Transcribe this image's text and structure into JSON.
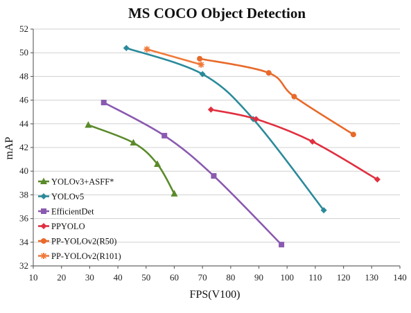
{
  "chart_data": {
    "type": "line",
    "title": "MS COCO Object Detection",
    "xlabel": "FPS(V100)",
    "ylabel": "mAP",
    "xlim": [
      10,
      140
    ],
    "ylim": [
      32,
      52
    ],
    "x_ticks": [
      10,
      20,
      30,
      40,
      50,
      60,
      70,
      80,
      90,
      100,
      110,
      120,
      130,
      140
    ],
    "y_ticks": [
      32,
      34,
      36,
      38,
      40,
      42,
      44,
      46,
      48,
      50,
      52
    ],
    "grid": "horizontal",
    "legend_position": "bottom-left",
    "series": [
      {
        "name": "YOLOv3+ASFF*",
        "color": "#5a8a2a",
        "marker": "triangle",
        "points": [
          [
            29.5,
            43.9
          ],
          [
            45.5,
            42.4
          ],
          [
            54,
            40.6
          ],
          [
            60,
            38.1
          ]
        ]
      },
      {
        "name": "YOLOv5",
        "color": "#2a8a9a",
        "marker": "diamond",
        "points": [
          [
            43,
            50.4
          ],
          [
            70,
            48.2
          ],
          [
            88,
            44.4
          ],
          [
            113,
            36.7
          ]
        ]
      },
      {
        "name": "EfficientDet",
        "color": "#8a5ab0",
        "marker": "square",
        "points": [
          [
            35,
            45.8
          ],
          [
            56.5,
            43.0
          ],
          [
            74,
            39.6
          ],
          [
            98,
            33.8
          ]
        ]
      },
      {
        "name": "PPYOLO",
        "color": "#e03040",
        "marker": "diamond",
        "points": [
          [
            73,
            45.2
          ],
          [
            89,
            44.4
          ],
          [
            109,
            42.5
          ],
          [
            132,
            39.3
          ]
        ]
      },
      {
        "name": "PP-YOLOv2(R50)",
        "color": "#e86a2a",
        "marker": "circle",
        "points": [
          [
            69,
            49.5
          ],
          [
            93.5,
            48.3
          ],
          [
            102.5,
            46.3
          ],
          [
            123.5,
            43.1
          ]
        ]
      },
      {
        "name": "PP-YOLOv2(R101)",
        "color": "#f07a3a",
        "marker": "star",
        "points": [
          [
            50.3,
            50.3
          ],
          [
            69.5,
            49.0
          ]
        ]
      }
    ]
  }
}
